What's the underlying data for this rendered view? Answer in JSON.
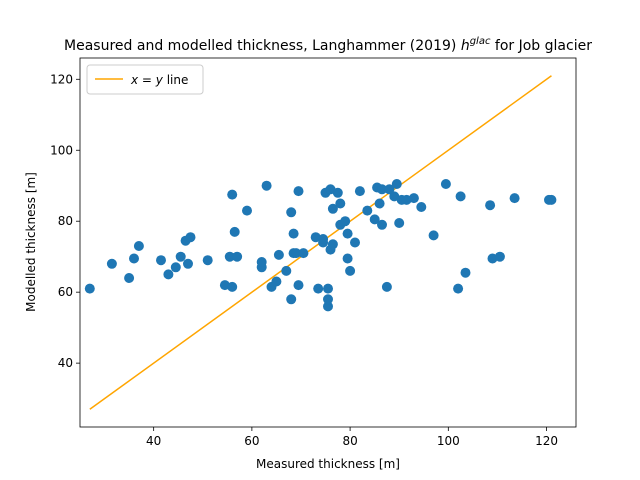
{
  "chart_data": {
    "type": "scatter",
    "title": "Measured and modelled thickness, Langhammer (2019) ",
    "title_math": "h",
    "title_sup": "glac",
    "title_end": " for Job glacier",
    "xlabel": "Measured thickness [m]",
    "ylabel": "Modelled thickness [m]",
    "xlim": [
      25,
      126
    ],
    "ylim": [
      22,
      126
    ],
    "xticks": [
      40,
      60,
      80,
      100,
      120
    ],
    "yticks": [
      40,
      60,
      80,
      100,
      120
    ],
    "grid": false,
    "legend_position": "top-left",
    "colors": {
      "points": "#1f77b4",
      "line": "#ffa500"
    },
    "series": [
      {
        "kind": "points",
        "x": [
          27,
          31.5,
          35,
          36,
          37,
          41.5,
          43,
          44.5,
          45.5,
          46.5,
          47,
          47.5,
          51,
          54.5,
          55.5,
          56,
          56,
          56.5,
          57,
          59,
          62,
          62,
          63,
          64,
          65,
          65.5,
          67,
          68,
          68,
          68.5,
          68.5,
          69,
          69.5,
          69.5,
          70.5,
          73,
          73.5,
          74.5,
          74.5,
          75,
          75.5,
          75.5,
          75.5,
          76,
          76,
          76.5,
          76.5,
          77.5,
          78,
          78,
          79,
          79.5,
          79.5,
          80,
          81,
          82,
          83.5,
          85,
          85.5,
          86,
          86.5,
          86.5,
          87.5,
          88,
          89,
          89.5,
          90,
          90.5,
          91.5,
          93,
          94.5,
          97,
          99.5,
          102,
          102.5,
          103.5,
          108.5,
          109,
          110.5,
          113.5,
          120.5,
          121
        ],
        "y": [
          61,
          68,
          64,
          69.5,
          73,
          69,
          65,
          67,
          70,
          74.5,
          68,
          75.5,
          69,
          62,
          70,
          61.5,
          87.5,
          77,
          70,
          83,
          67,
          68.5,
          90,
          61.5,
          63,
          70.5,
          66,
          82.5,
          58,
          71,
          76.5,
          71,
          62,
          88.5,
          71,
          75.5,
          61,
          74,
          75,
          88,
          56,
          58,
          61,
          72,
          89,
          73.5,
          83.5,
          88,
          79,
          85,
          80,
          69.5,
          76.5,
          66,
          74,
          88.5,
          83,
          80.5,
          89.5,
          85,
          89,
          79,
          61.5,
          89,
          87,
          90.5,
          79.5,
          86,
          86,
          86.5,
          84,
          76,
          90.5,
          61,
          87,
          65.5,
          84.5,
          69.5,
          70,
          86.5,
          86,
          86
        ]
      },
      {
        "kind": "line",
        "name": "x = y line",
        "x": [
          27,
          121
        ],
        "y": [
          27,
          121
        ]
      }
    ],
    "legend": {
      "label_math": "x",
      "label_eq": " = ",
      "label_math2": "y",
      "label_text": " line"
    }
  }
}
